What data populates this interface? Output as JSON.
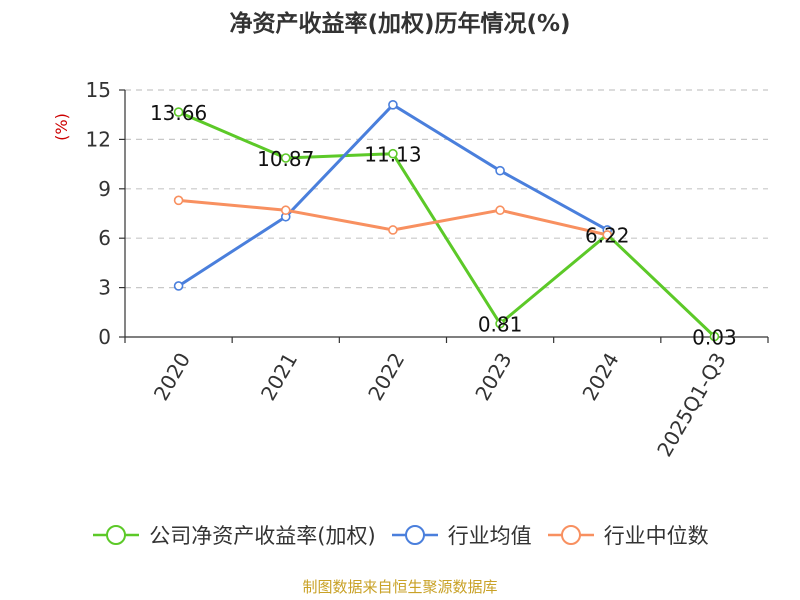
{
  "chart_data": {
    "type": "line",
    "title": "净资产收益率(加权)历年情况(%)",
    "ylabel": "(%)",
    "categories": [
      "2020",
      "2021",
      "2022",
      "2023",
      "2024",
      "2025Q1-Q3"
    ],
    "yticks": [
      "0",
      "3",
      "6",
      "9",
      "12",
      "15"
    ],
    "ylim": [
      0,
      15
    ],
    "grid": true,
    "legend": "bottom",
    "series": [
      {
        "name": "公司净资产收益率(加权)",
        "color": "#5cc928",
        "values": [
          13.66,
          10.87,
          11.13,
          0.81,
          6.22,
          0.03
        ],
        "labels": [
          "13.66",
          "10.87",
          "11.13",
          "0.81",
          "6.22",
          "0.03"
        ]
      },
      {
        "name": "行业均值",
        "color": "#4a7fdc",
        "values": [
          3.1,
          7.3,
          14.1,
          10.1,
          6.5,
          null
        ]
      },
      {
        "name": "行业中位数",
        "color": "#f89060",
        "values": [
          8.3,
          7.7,
          6.5,
          7.7,
          6.2,
          null
        ]
      }
    ]
  },
  "source": "制图数据来自恒生聚源数据库"
}
